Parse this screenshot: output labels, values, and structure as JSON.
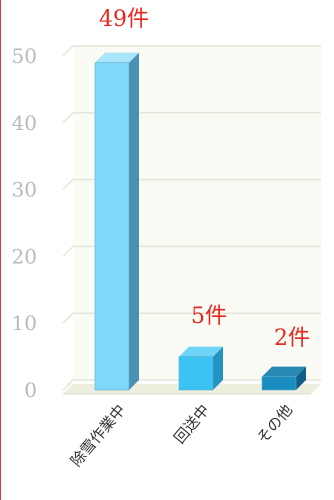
{
  "chart_data": {
    "type": "bar",
    "categories": [
      "除雪作業中",
      "回送中",
      "その他"
    ],
    "values": [
      49,
      5,
      2
    ],
    "data_labels": [
      "49件",
      "5件",
      "2件"
    ],
    "ylim": [
      0,
      50
    ],
    "yticks": [
      0,
      10,
      20,
      30,
      40,
      50
    ],
    "grid": true,
    "style": "3d",
    "colors": {
      "bar_front": [
        "#7fd7f9",
        "#3bc3f4",
        "#1a8cc0"
      ],
      "bar_top": [
        "#a9e6fb",
        "#6fd4f7",
        "#2a88b4"
      ],
      "bar_side": [
        "#4a90b3",
        "#2493c2",
        "#0f5f86"
      ],
      "grid": "#e6e6d8",
      "data_label": "#e8261e",
      "frame": "#d23a3a"
    }
  }
}
